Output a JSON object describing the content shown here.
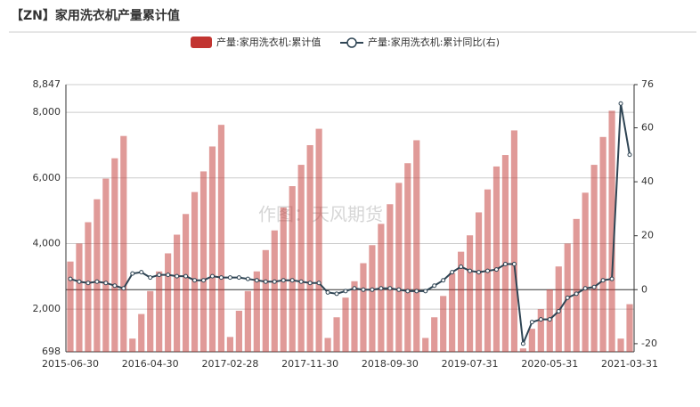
{
  "chart_data": {
    "type": "bar_line",
    "title": "【ZN】家用洗衣机产量累计值",
    "annotation": "作图：天风期货",
    "categories": [
      "2015-06-30",
      null,
      null,
      null,
      null,
      null,
      null,
      null,
      null,
      "2016-04-30",
      null,
      null,
      null,
      null,
      null,
      null,
      null,
      null,
      "2017-02-28",
      null,
      null,
      null,
      null,
      null,
      null,
      null,
      null,
      "2017-11-30",
      null,
      null,
      null,
      null,
      null,
      null,
      null,
      null,
      "2018-09-30",
      null,
      null,
      null,
      null,
      null,
      null,
      null,
      null,
      "2019-07-31",
      null,
      null,
      null,
      null,
      null,
      null,
      null,
      null,
      "2020-05-31",
      null,
      null,
      null,
      null,
      null,
      null,
      null,
      null,
      "2021-03-31"
    ],
    "series": [
      {
        "name": "产量:家用洗衣机:累计值",
        "color": "#c23531",
        "type": "bar",
        "values": [
          3450,
          4000,
          4650,
          5350,
          5980,
          6600,
          7280,
          1100,
          1850,
          2550,
          3150,
          3700,
          4270,
          4900,
          5570,
          6200,
          6960,
          7620,
          1150,
          1950,
          2550,
          3150,
          3800,
          4400,
          5100,
          5750,
          6400,
          7000,
          7500,
          1120,
          1750,
          2350,
          2850,
          3400,
          3950,
          4600,
          5200,
          5850,
          6450,
          7150,
          1120,
          1750,
          2400,
          3100,
          3750,
          4250,
          4950,
          5650,
          6350,
          6700,
          7450,
          800,
          1400,
          2000,
          2600,
          3300,
          4000,
          4750,
          5550,
          6400,
          7250,
          8050,
          1100,
          2150
        ]
      },
      {
        "name": "产量:家用洗衣机:累计同比(右)",
        "color": "#2f4554",
        "type": "line",
        "axis": "y2",
        "values": [
          4,
          3,
          2.5,
          3,
          2.5,
          1.5,
          0.5,
          6,
          6.5,
          4.5,
          5.5,
          5.5,
          5,
          5,
          3.5,
          3.5,
          5,
          4.5,
          4.5,
          4.5,
          4,
          3.5,
          3,
          3,
          3.5,
          3.5,
          3,
          2.5,
          2.5,
          -1,
          -1.5,
          -0.5,
          0.5,
          0,
          0,
          0.5,
          0.5,
          0,
          -0.5,
          -0.5,
          -0.5,
          1.5,
          3.5,
          6.5,
          8.5,
          7,
          6.5,
          7,
          7.5,
          9.5,
          9.5,
          -20,
          -12,
          -11,
          -11,
          -8,
          -3,
          -1.5,
          0.5,
          1,
          3.5,
          4,
          69,
          50
        ]
      }
    ],
    "ylim": [
      698,
      8847
    ],
    "yticks": [
      698,
      {
        "value": 2000,
        "label": "2,000"
      },
      {
        "value": 4000,
        "label": "4,000"
      },
      {
        "value": 6000,
        "label": "6,000"
      },
      {
        "value": 8000,
        "label": "8,000"
      },
      {
        "value": 8847,
        "label": "8,847"
      }
    ],
    "y2lim": [
      -23,
      76
    ],
    "y2ticks": [
      -20,
      0,
      20,
      40,
      60,
      76
    ],
    "grid": true
  }
}
